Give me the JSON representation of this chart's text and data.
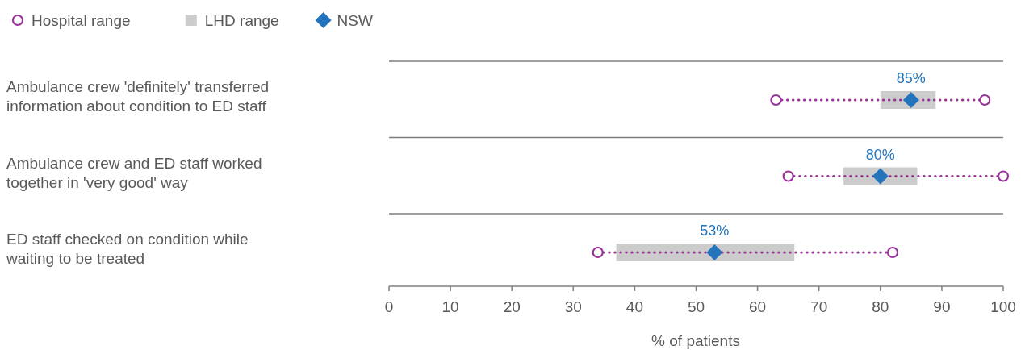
{
  "chart_data": {
    "type": "bar",
    "orientation": "horizontal",
    "xlabel": "% of patients",
    "legend": "top left",
    "categories": [
      "Ambulance crew 'definitely' transferred information about condition to ED staff",
      "Ambulance crew and ED staff worked together in 'very good' way",
      "ED staff checked on condition while waiting to be treated"
    ],
    "xlim": [
      0,
      100
    ],
    "xticks": [
      0,
      10,
      20,
      30,
      40,
      50,
      60,
      70,
      80,
      90,
      100
    ],
    "series": [
      {
        "name": "Hospital range",
        "type": "scatter",
        "values": [
          63,
          65,
          34
        ],
        "color": "#993399",
        "marker": "circle",
        "line_style": "dotted"
      },
      {
        "type": "scatter",
        "values": [
          97,
          100,
          82
        ],
        "color": "#993399",
        "marker": "circle"
      },
      {
        "name": "LHD range",
        "base": [
          80,
          74,
          37
        ],
        "values": [
          9,
          12,
          29
        ],
        "color": "#cccccc"
      },
      {
        "name": "NSW",
        "type": "scatter",
        "values": [
          85,
          80,
          53
        ],
        "color": "#2474bb",
        "marker": "diamond",
        "value_labels": [
          "85%",
          "80%",
          "53%"
        ]
      }
    ]
  }
}
